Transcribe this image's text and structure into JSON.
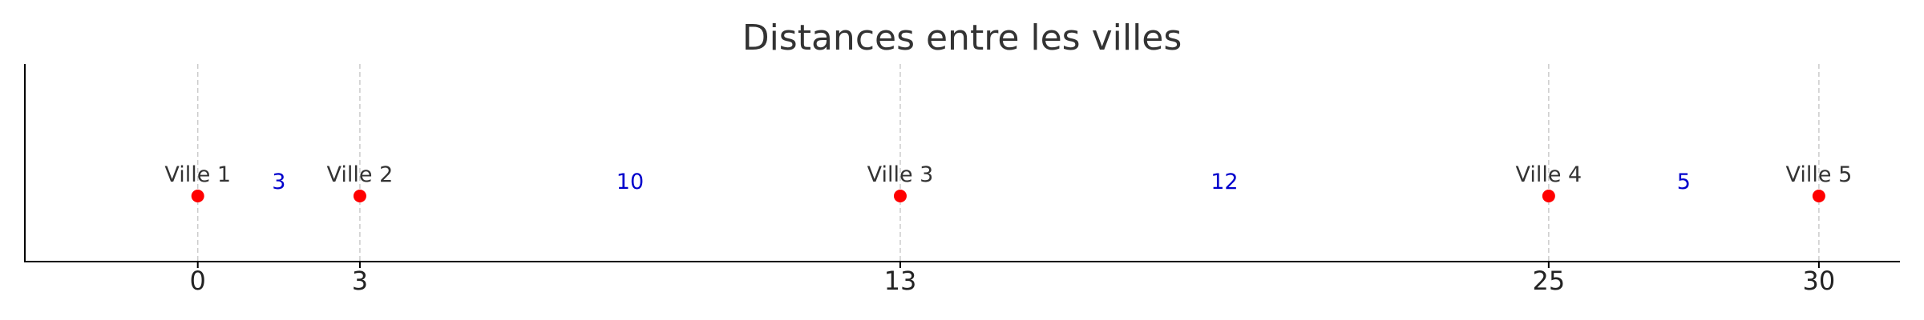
{
  "chart_data": {
    "type": "scatter",
    "title": "Distances entre les villes",
    "xlabel": "",
    "ylabel": "",
    "xlim": [
      -3.2,
      31.5
    ],
    "x_ticks": [
      0,
      3,
      13,
      25,
      30
    ],
    "grid": "vertical dashed lines at tick positions",
    "points": [
      {
        "x": 0,
        "label": "Ville 1"
      },
      {
        "x": 3,
        "label": "Ville 2"
      },
      {
        "x": 13,
        "label": "Ville 3"
      },
      {
        "x": 25,
        "label": "Ville 4"
      },
      {
        "x": 30,
        "label": "Ville 5"
      }
    ],
    "distances": [
      {
        "from": 0,
        "to": 3,
        "value": "3"
      },
      {
        "from": 3,
        "to": 13,
        "value": "10"
      },
      {
        "from": 13,
        "to": 25,
        "value": "12"
      },
      {
        "from": 25,
        "to": 30,
        "value": "5"
      }
    ],
    "colors": {
      "point": "#ff0000",
      "distance_text": "#0000cc",
      "axis": "#000000"
    }
  }
}
